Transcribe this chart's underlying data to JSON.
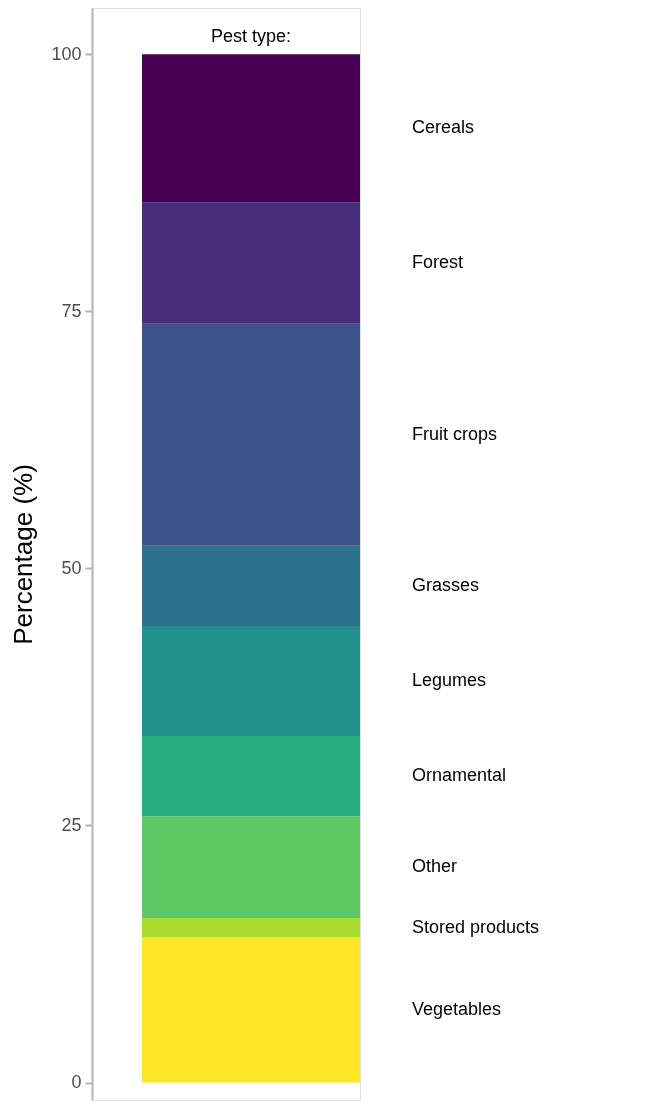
{
  "chart_data": {
    "type": "bar",
    "stacked": true,
    "ylabel": "Percentage (%)",
    "legend_title": "Pest type:",
    "categories": [
      null
    ],
    "series": [
      {
        "name": "Vegetables",
        "color": "#fde725",
        "values": [
          14.1
        ]
      },
      {
        "name": "Stored products",
        "color": "#addc30",
        "values": [
          1.9
        ]
      },
      {
        "name": "Other",
        "color": "#5ec962",
        "values": [
          9.9
        ]
      },
      {
        "name": "Ornamental",
        "color": "#28ae80",
        "values": [
          7.8
        ]
      },
      {
        "name": "Legumes",
        "color": "#21918c",
        "values": [
          10.7
        ]
      },
      {
        "name": "Grasses",
        "color": "#2c728e",
        "values": [
          7.8
        ]
      },
      {
        "name": "Fruit crops",
        "color": "#3b528b",
        "values": [
          21.6
        ]
      },
      {
        "name": "Forest",
        "color": "#472d7b",
        "values": [
          11.8
        ]
      },
      {
        "name": "Cereals",
        "color": "#440154",
        "values": [
          14.4
        ]
      }
    ],
    "ylim": [
      -1.7,
      104.5
    ],
    "yticks": [
      0,
      25,
      50,
      75,
      100
    ],
    "grid": false,
    "legend": "right",
    "tick_labels": "y"
  }
}
